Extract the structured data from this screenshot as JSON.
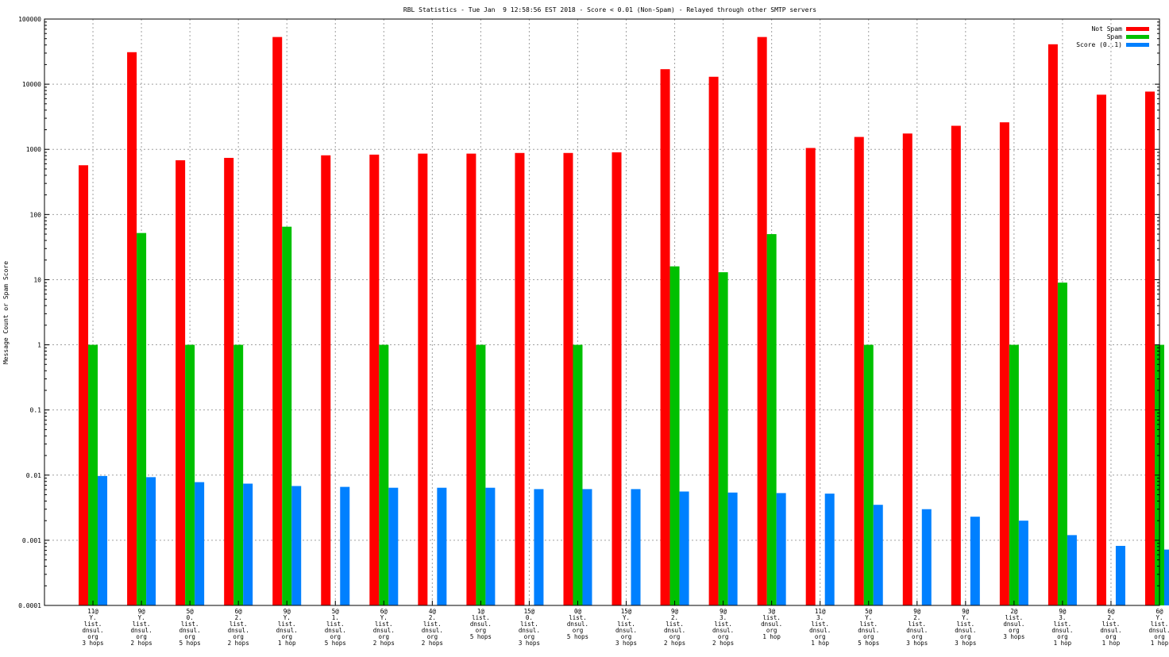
{
  "chart_data": {
    "type": "bar",
    "title": "RBL Statistics - Tue Jan  9 12:58:56 EST 2018 - Score < 0.01 (Non-Spam) - Relayed through other SMTP servers",
    "ylabel": "Message Count or Spam Score",
    "xlabel": "",
    "yscale": "log",
    "ylim": [
      0.0001,
      100000
    ],
    "yticks": [
      "0.0001",
      "0.001",
      "0.01",
      "0.1",
      "1",
      "10",
      "100",
      "1000",
      "10000",
      "100000"
    ],
    "grid": true,
    "legend_position": "top-right",
    "categories": [
      [
        "11@",
        "Y.",
        "list.",
        "dnsul.",
        "org",
        "3 hops"
      ],
      [
        "9@",
        "Y.",
        "list.",
        "dnsul.",
        "org",
        "2 hops"
      ],
      [
        "5@",
        "0.",
        "list.",
        "dnsul.",
        "org",
        "5 hops"
      ],
      [
        "6@",
        "2.",
        "list.",
        "dnsul.",
        "org",
        "2 hops"
      ],
      [
        "9@",
        "Y.",
        "list.",
        "dnsul.",
        "org",
        "1 hop"
      ],
      [
        "5@",
        "1.",
        "list.",
        "dnsul.",
        "org",
        "5 hops"
      ],
      [
        "6@",
        "Y.",
        "list.",
        "dnsul.",
        "org",
        "2 hops"
      ],
      [
        "4@",
        "2.",
        "list.",
        "dnsul.",
        "org",
        "2 hops"
      ],
      [
        "1@",
        "list.",
        "dnsul.",
        "org",
        "5 hops"
      ],
      [
        "15@",
        "0.",
        "list.",
        "dnsul.",
        "org",
        "3 hops"
      ],
      [
        "0@",
        "list.",
        "dnsul.",
        "org",
        "5 hops"
      ],
      [
        "15@",
        "Y.",
        "list.",
        "dnsul.",
        "org",
        "3 hops"
      ],
      [
        "9@",
        "2.",
        "list.",
        "dnsul.",
        "org",
        "2 hops"
      ],
      [
        "9@",
        "3.",
        "list.",
        "dnsul.",
        "org",
        "2 hops"
      ],
      [
        "3@",
        "list.",
        "dnsul.",
        "org",
        "1 hop"
      ],
      [
        "11@",
        "3.",
        "list.",
        "dnsul.",
        "org",
        "1 hop"
      ],
      [
        "5@",
        "Y.",
        "list.",
        "dnsul.",
        "org",
        "5 hops"
      ],
      [
        "9@",
        "2.",
        "list.",
        "dnsul.",
        "org",
        "3 hops"
      ],
      [
        "9@",
        "Y.",
        "list.",
        "dnsul.",
        "org",
        "3 hops"
      ],
      [
        "2@",
        "list.",
        "dnsul.",
        "org",
        "3 hops"
      ],
      [
        "9@",
        "3.",
        "list.",
        "dnsul.",
        "org",
        "1 hop"
      ],
      [
        "6@",
        "2.",
        "list.",
        "dnsul.",
        "org",
        "1 hop"
      ],
      [
        "6@",
        "Y.",
        "list.",
        "dnsul.",
        "org",
        "1 hop"
      ]
    ],
    "series": [
      {
        "name": "Not Spam",
        "color": "#ff0000",
        "values": [
          570,
          31000,
          680,
          740,
          53000,
          810,
          830,
          860,
          860,
          880,
          880,
          900,
          17000,
          13000,
          53000,
          1050,
          1550,
          1750,
          2300,
          2600,
          41000,
          6900,
          7700
        ]
      },
      {
        "name": "Spam",
        "color": "#00c000",
        "values": [
          1,
          52,
          1,
          1,
          65,
          null,
          1,
          null,
          1,
          null,
          1,
          null,
          16,
          13,
          50,
          null,
          1,
          null,
          null,
          1,
          9,
          null,
          1
        ]
      },
      {
        "name": "Score (0..1)",
        "color": "#0080ff",
        "values": [
          0.0097,
          0.0093,
          0.0078,
          0.0074,
          0.0068,
          0.0066,
          0.0064,
          0.0064,
          0.0064,
          0.0061,
          0.0061,
          0.0061,
          0.0056,
          0.0054,
          0.0053,
          0.0052,
          0.0035,
          0.003,
          0.0023,
          0.002,
          0.0012,
          0.00082,
          0.00072
        ]
      }
    ]
  }
}
